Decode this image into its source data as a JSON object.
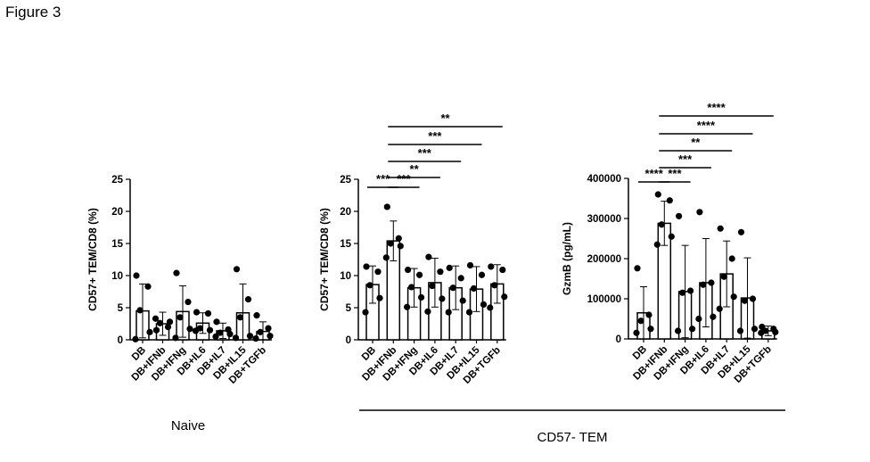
{
  "figure_title": "Figure 3",
  "group_labels": {
    "naive": "Naive",
    "cd57_tem": "CD57- TEM"
  },
  "chart_data": [
    {
      "type": "bar",
      "title": "",
      "ylabel": "CD57+ TEM/CD8 (%)",
      "ylim": [
        0,
        25
      ],
      "yticks": [
        0,
        5,
        10,
        15,
        20,
        25
      ],
      "ytick_labels": [
        "0",
        "5",
        "10",
        "15",
        "20",
        "25"
      ],
      "categories": [
        "DB",
        "DB+IFNb",
        "DB+IFNg",
        "DB+IL6",
        "DB+IL7",
        "DB+IL15",
        "DB+TGFb"
      ],
      "means": [
        4.5,
        2.5,
        4.4,
        2.6,
        1.4,
        4.2,
        1.3
      ],
      "sd": [
        4.2,
        1.8,
        4.0,
        1.6,
        1.2,
        4.5,
        1.5
      ],
      "points": [
        [
          10,
          8.3,
          4.6,
          1.2,
          0.1
        ],
        [
          1.5,
          2.0,
          2.6,
          2.8,
          3.3
        ],
        [
          10.4,
          5.9,
          3.5,
          1.7,
          0.3
        ],
        [
          4.3,
          4.1,
          1.8,
          1.5,
          1.4
        ],
        [
          2.8,
          1.6,
          1.1,
          0.9,
          0.5
        ],
        [
          11.0,
          6.3,
          3.5,
          0.6,
          0.3
        ],
        [
          3.8,
          1.8,
          1.2,
          0.6,
          0.2
        ]
      ],
      "significance": []
    },
    {
      "type": "bar",
      "title": "",
      "ylabel": "CD57+ TEM/CD8 (%)",
      "ylim": [
        0,
        25
      ],
      "yticks": [
        0,
        5,
        10,
        15,
        20,
        25
      ],
      "ytick_labels": [
        "0",
        "5",
        "10",
        "15",
        "20",
        "25"
      ],
      "categories": [
        "DB",
        "DB+IFNb",
        "DB+IFNg",
        "DB+IL6",
        "DB+IL7",
        "DB+IL15",
        "DB+TGFb"
      ],
      "means": [
        8.6,
        15.4,
        8.1,
        8.9,
        8.1,
        7.9,
        8.7
      ],
      "sd": [
        2.9,
        3.1,
        3.0,
        3.8,
        3.4,
        3.5,
        3.0
      ],
      "points": [
        [
          11.4,
          10.6,
          8.5,
          6.5,
          4.3
        ],
        [
          20.7,
          15.8,
          15.0,
          14.6,
          12.8
        ],
        [
          10.9,
          10.1,
          8.2,
          6.6,
          5.1
        ],
        [
          12.9,
          10.6,
          8.4,
          6.4,
          4.4
        ],
        [
          11.2,
          9.6,
          8.1,
          6.1,
          4.3
        ],
        [
          11.6,
          10.1,
          8.0,
          5.5,
          4.3
        ],
        [
          11.4,
          10.9,
          8.5,
          6.7,
          5.0
        ]
      ],
      "significance": [
        {
          "from": 0,
          "to": 1,
          "label": "***"
        },
        {
          "from": 1,
          "to": 2,
          "label": "***"
        },
        {
          "from": 1,
          "to": 3,
          "label": "**"
        },
        {
          "from": 1,
          "to": 4,
          "label": "***"
        },
        {
          "from": 1,
          "to": 5,
          "label": "***"
        },
        {
          "from": 1,
          "to": 6,
          "label": "**"
        }
      ]
    },
    {
      "type": "bar",
      "title": "",
      "ylabel": "GzmB (pg/mL)",
      "ylim": [
        0,
        400000
      ],
      "yticks": [
        0,
        100000,
        200000,
        300000,
        400000
      ],
      "ytick_labels": [
        "0",
        "100000",
        "200000",
        "300000",
        "400000"
      ],
      "categories": [
        "DB",
        "DB+IFNb",
        "DB+IFNg",
        "DB+IL6",
        "DB+IL7",
        "DB+IL15",
        "DB+TGFb"
      ],
      "means": [
        65000,
        288000,
        118000,
        140000,
        162000,
        102000,
        20000
      ],
      "sd": [
        65000,
        55000,
        115000,
        110000,
        82000,
        100000,
        12000
      ],
      "points": [
        [
          176000,
          60000,
          45000,
          25000,
          15000
        ],
        [
          360000,
          345000,
          285000,
          255000,
          235000
        ],
        [
          306000,
          120000,
          115000,
          25000,
          20000
        ],
        [
          316000,
          140000,
          135000,
          55000,
          50000
        ],
        [
          275000,
          200000,
          155000,
          105000,
          75000
        ],
        [
          266000,
          100000,
          95000,
          25000,
          20000
        ],
        [
          30000,
          25000,
          20000,
          17000,
          15000
        ]
      ],
      "significance": [
        {
          "from": 0,
          "to": 1,
          "label": "****"
        },
        {
          "from": 1,
          "to": 2,
          "label": "***"
        },
        {
          "from": 1,
          "to": 3,
          "label": "***"
        },
        {
          "from": 1,
          "to": 4,
          "label": "**"
        },
        {
          "from": 1,
          "to": 5,
          "label": "****"
        },
        {
          "from": 1,
          "to": 6,
          "label": "****"
        }
      ]
    }
  ]
}
